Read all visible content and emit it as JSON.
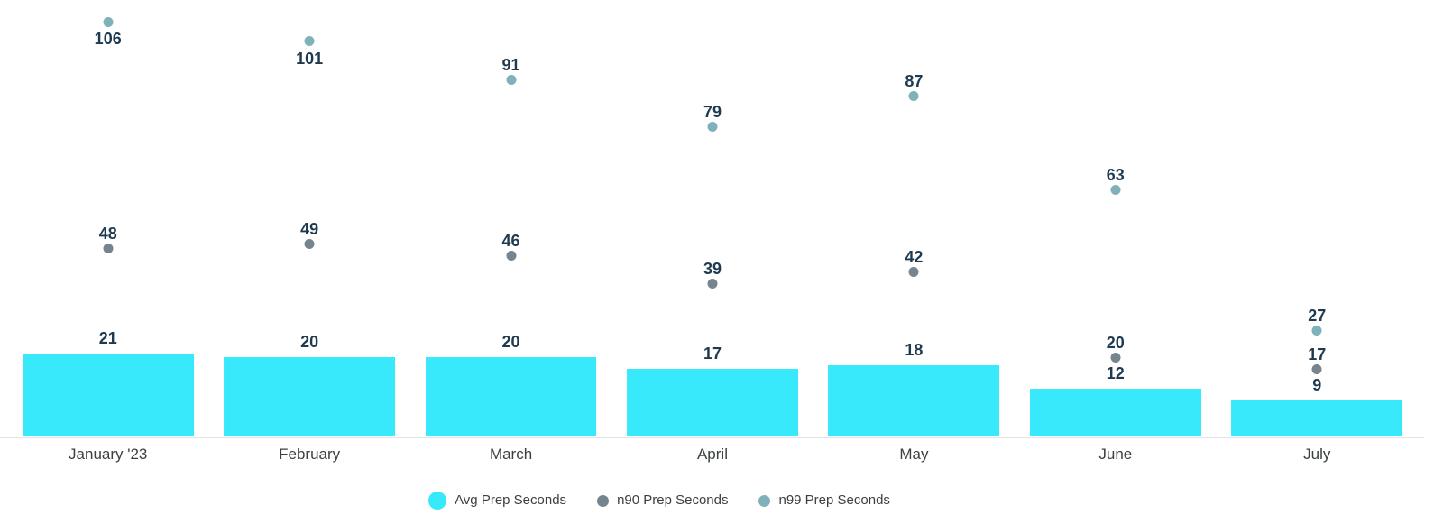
{
  "chart_data": {
    "type": "combo-bar-scatter",
    "categories": [
      "January '23",
      "February",
      "March",
      "April",
      "May",
      "June",
      "July"
    ],
    "series": [
      {
        "name": "Avg Prep Seconds",
        "type": "bar",
        "color": "#38e8fb",
        "values": [
          21,
          20,
          20,
          17,
          18,
          12,
          9
        ]
      },
      {
        "name": "n90 Prep Seconds",
        "type": "scatter",
        "color": "#76848e",
        "values": [
          48,
          49,
          46,
          39,
          42,
          20,
          17
        ]
      },
      {
        "name": "n99 Prep Seconds",
        "type": "scatter",
        "color": "#7fb1ba",
        "values": [
          106,
          101,
          91,
          79,
          87,
          63,
          27
        ]
      }
    ],
    "ylim": [
      0,
      112
    ],
    "grid": false,
    "y_axis_visible": false,
    "data_labels_shown": true,
    "legend_position": "bottom",
    "colors": {
      "data_label": "#1f3a4f",
      "axis_label": "#3c4043",
      "axis_line": "#e1e3eb",
      "background": "#ffffff"
    }
  },
  "legend": {
    "items": [
      {
        "label": "Avg Prep Seconds",
        "color": "#38e8fb",
        "size": "large"
      },
      {
        "label": "n90 Prep Seconds",
        "color": "#76848e",
        "size": "small"
      },
      {
        "label": "n99 Prep Seconds",
        "color": "#7fb1ba",
        "size": "small"
      }
    ]
  }
}
